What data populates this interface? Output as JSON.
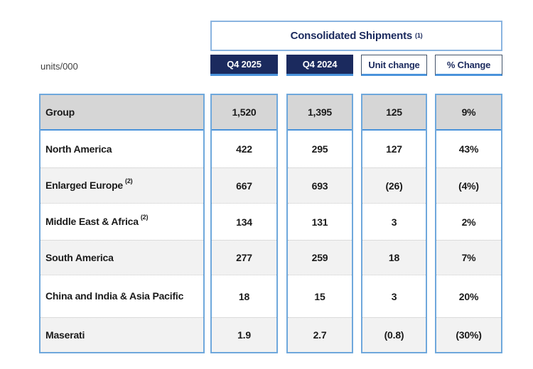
{
  "theme": {
    "navy": "#1B2A5E",
    "border_blue": "#6FA8DC",
    "underline_blue": "#4A93DB",
    "title_border": "#8AB4E0",
    "header_gray": "#D6D6D6",
    "band_gray": "#F2F2F2",
    "text_black": "#1A1A1A"
  },
  "units_label": "units/000",
  "header": {
    "title": "Consolidated Shipments",
    "footnote_marker": "(1)"
  },
  "columns": [
    {
      "label": "Q4 2025",
      "style": "navy"
    },
    {
      "label": "Q4 2024",
      "style": "navy"
    },
    {
      "label": "Unit change",
      "style": "white"
    },
    {
      "label": "% Change",
      "style": "white"
    }
  ],
  "table": {
    "rows": [
      {
        "label": "Group",
        "sup": "",
        "q4_2025": "1,520",
        "q4_2024": "1,395",
        "unit_change": "125",
        "pct_change": "9%"
      },
      {
        "label": "North America",
        "sup": "",
        "q4_2025": "422",
        "q4_2024": "295",
        "unit_change": "127",
        "pct_change": "43%"
      },
      {
        "label": "Enlarged Europe",
        "sup": "(2)",
        "q4_2025": "667",
        "q4_2024": "693",
        "unit_change": "(26)",
        "pct_change": "(4%)"
      },
      {
        "label": "Middle East & Africa",
        "sup": "(2)",
        "q4_2025": "134",
        "q4_2024": "131",
        "unit_change": "3",
        "pct_change": "2%"
      },
      {
        "label": "South America",
        "sup": "",
        "q4_2025": "277",
        "q4_2024": "259",
        "unit_change": "18",
        "pct_change": "7%"
      },
      {
        "label": "China and India & Asia Pacific",
        "sup": "",
        "q4_2025": "18",
        "q4_2024": "15",
        "unit_change": "3",
        "pct_change": "20%"
      },
      {
        "label": "Maserati",
        "sup": "",
        "q4_2025": "1.9",
        "q4_2024": "2.7",
        "unit_change": "(0.8)",
        "pct_change": "(30%)"
      }
    ]
  }
}
